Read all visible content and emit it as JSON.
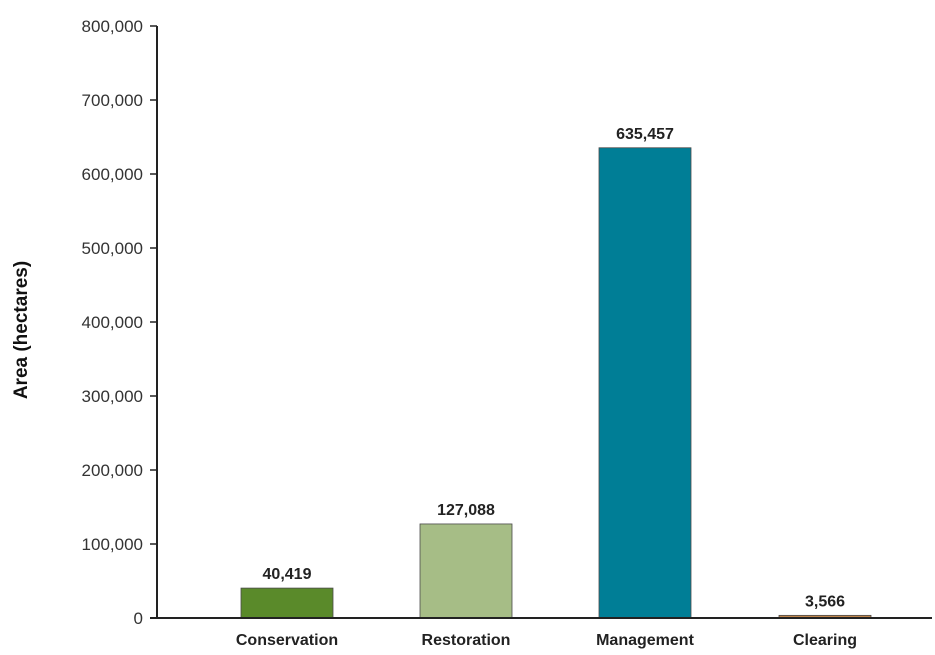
{
  "chart_data": {
    "type": "bar",
    "title": "",
    "xlabel": "",
    "ylabel": "Area (hectares)",
    "ylim": [
      0,
      800000
    ],
    "yticks": [
      0,
      100000,
      200000,
      300000,
      400000,
      500000,
      600000,
      700000,
      800000
    ],
    "ytick_labels": [
      "0",
      "100,000",
      "200,000",
      "300,000",
      "400,000",
      "500,000",
      "600,000",
      "700,000",
      "800,000"
    ],
    "categories": [
      "Conservation",
      "Restoration",
      "Management",
      "Clearing"
    ],
    "values": [
      40419,
      127088,
      635457,
      3566
    ],
    "value_labels": [
      "40,419",
      "127,088",
      "635,457",
      "3,566"
    ],
    "colors": [
      "#5a8a2a",
      "#a6bd86",
      "#007e96",
      "#c0864c"
    ],
    "grid": false,
    "legend": "none"
  }
}
